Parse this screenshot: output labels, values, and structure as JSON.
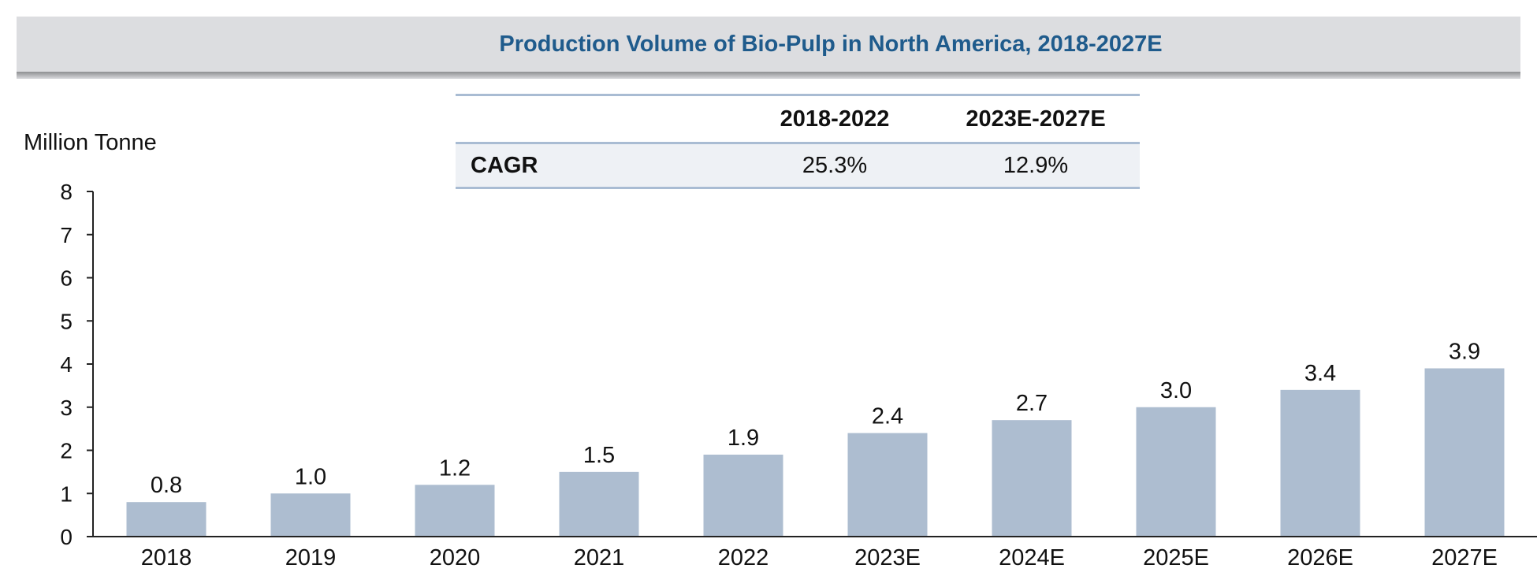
{
  "header": {
    "title": "Production Volume of Bio-Pulp in North America, 2018-2027E"
  },
  "cagr_table": {
    "columns": [
      "",
      "2018-2022",
      "2023E-2027E"
    ],
    "row_label": "CAGR",
    "values": [
      "25.3%",
      "12.9%"
    ]
  },
  "colors": {
    "bar": "#adbdd0",
    "title": "#1f5b8c",
    "header_bg": "#dcdde0",
    "table_rule": "#a9bcd3",
    "table_row_bg": "#eef1f5"
  },
  "chart_data": {
    "type": "bar",
    "title": "Production Volume of Bio-Pulp in North America, 2018-2027E",
    "xlabel": "",
    "ylabel": "Million Tonne",
    "categories": [
      "2018",
      "2019",
      "2020",
      "2021",
      "2022",
      "2023E",
      "2024E",
      "2025E",
      "2026E",
      "2027E"
    ],
    "values": [
      0.8,
      1.0,
      1.2,
      1.5,
      1.9,
      2.4,
      2.7,
      3.0,
      3.4,
      3.9
    ],
    "value_labels": [
      "0.8",
      "1.0",
      "1.2",
      "1.5",
      "1.9",
      "2.4",
      "2.7",
      "3.0",
      "3.4",
      "3.9"
    ],
    "ylim": [
      0,
      8
    ],
    "yticks": [
      0,
      1,
      2,
      3,
      4,
      5,
      6,
      7,
      8
    ],
    "grid": false,
    "legend": "none"
  }
}
